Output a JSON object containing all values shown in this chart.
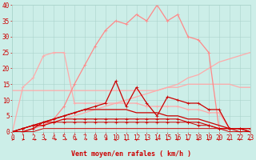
{
  "background_color": "#cceee8",
  "grid_color": "#aad4cc",
  "x_min": 0,
  "x_max": 23,
  "y_min": 0,
  "y_max": 40,
  "xlabel": "Vent moyen/en rafales ( km/h )",
  "xlabel_color": "#cc0000",
  "xlabel_fontsize": 6,
  "tick_color": "#cc0000",
  "tick_fontsize": 5.5,
  "series": [
    {
      "x": [
        0,
        1,
        2,
        3,
        4,
        5,
        6,
        7,
        8,
        9,
        10,
        11,
        12,
        13,
        14,
        15,
        16,
        17,
        18,
        19,
        20,
        21,
        22,
        23
      ],
      "y": [
        0,
        1,
        2,
        2,
        3,
        4,
        5,
        6,
        7,
        8,
        9,
        10,
        11,
        12,
        13,
        14,
        15,
        17,
        18,
        20,
        22,
        23,
        24,
        25
      ],
      "color": "#ffaaaa",
      "linewidth": 0.9,
      "marker": null,
      "alpha": 1.0
    },
    {
      "x": [
        0,
        1,
        2,
        3,
        4,
        5,
        6,
        7,
        8,
        9,
        10,
        11,
        12,
        13,
        14,
        15,
        16,
        17,
        18,
        19,
        20,
        21,
        22,
        23
      ],
      "y": [
        13,
        13,
        13,
        13,
        13,
        13,
        13,
        13,
        13,
        13,
        13,
        13,
        13,
        13,
        13,
        14,
        14,
        15,
        15,
        15,
        15,
        15,
        14,
        14
      ],
      "color": "#ffaaaa",
      "linewidth": 0.9,
      "marker": null,
      "alpha": 1.0
    },
    {
      "x": [
        0,
        1,
        2,
        3,
        4,
        5,
        6,
        7,
        8,
        9,
        10,
        11,
        12,
        13,
        14,
        15,
        16,
        17,
        18,
        19,
        20,
        21,
        22,
        23
      ],
      "y": [
        0,
        14,
        17,
        24,
        25,
        25,
        9,
        9,
        9,
        9,
        9,
        9,
        9,
        8,
        8,
        8,
        8,
        7,
        7,
        6,
        6,
        1,
        1,
        1
      ],
      "color": "#ffaaaa",
      "linewidth": 0.9,
      "marker": "+",
      "markersize": 3.0,
      "alpha": 1.0
    },
    {
      "x": [
        0,
        1,
        2,
        3,
        4,
        5,
        6,
        7,
        8,
        9,
        10,
        11,
        12,
        13,
        14,
        15,
        16,
        17,
        18,
        19,
        20,
        21,
        22,
        23
      ],
      "y": [
        0,
        0,
        1,
        2,
        4,
        8,
        15,
        21,
        27,
        32,
        35,
        34,
        37,
        35,
        40,
        35,
        37,
        30,
        29,
        25,
        1,
        1,
        1,
        1
      ],
      "color": "#ff8888",
      "linewidth": 0.9,
      "marker": "+",
      "markersize": 3.0,
      "alpha": 1.0
    },
    {
      "x": [
        0,
        1,
        2,
        3,
        4,
        5,
        6,
        7,
        8,
        9,
        10,
        11,
        12,
        13,
        14,
        15,
        16,
        17,
        18,
        19,
        20,
        21,
        22,
        23
      ],
      "y": [
        0,
        0,
        1,
        3,
        4,
        5,
        6,
        7,
        8,
        9,
        16,
        8,
        14,
        9,
        5,
        11,
        10,
        9,
        9,
        7,
        7,
        1,
        1,
        1
      ],
      "color": "#cc0000",
      "linewidth": 0.9,
      "marker": "+",
      "markersize": 3.0,
      "alpha": 1.0
    },
    {
      "x": [
        0,
        1,
        2,
        3,
        4,
        5,
        6,
        7,
        8,
        9,
        10,
        11,
        12,
        13,
        14,
        15,
        16,
        17,
        18,
        19,
        20,
        21,
        22,
        23
      ],
      "y": [
        0,
        1,
        2,
        3,
        4,
        5,
        6,
        7,
        7,
        7,
        7,
        7,
        6,
        6,
        6,
        5,
        5,
        4,
        4,
        3,
        2,
        1,
        1,
        0
      ],
      "color": "#cc0000",
      "linewidth": 0.9,
      "marker": null,
      "alpha": 1.0
    },
    {
      "x": [
        0,
        1,
        2,
        3,
        4,
        5,
        6,
        7,
        8,
        9,
        10,
        11,
        12,
        13,
        14,
        15,
        16,
        17,
        18,
        19,
        20,
        21,
        22,
        23
      ],
      "y": [
        0,
        1,
        2,
        3,
        3,
        3,
        3,
        3,
        3,
        3,
        3,
        3,
        3,
        3,
        3,
        3,
        3,
        3,
        2,
        2,
        1,
        1,
        0,
        0
      ],
      "color": "#cc0000",
      "linewidth": 0.7,
      "marker": "+",
      "markersize": 2.5,
      "alpha": 1.0
    },
    {
      "x": [
        0,
        1,
        2,
        3,
        4,
        5,
        6,
        7,
        8,
        9,
        10,
        11,
        12,
        13,
        14,
        15,
        16,
        17,
        18,
        19,
        20,
        21,
        22,
        23
      ],
      "y": [
        0,
        0,
        0,
        1,
        1,
        1,
        1,
        1,
        1,
        1,
        1,
        1,
        1,
        1,
        1,
        1,
        1,
        1,
        1,
        1,
        1,
        0,
        0,
        0
      ],
      "color": "#cc0000",
      "linewidth": 0.7,
      "marker": null,
      "alpha": 1.0
    },
    {
      "x": [
        0,
        1,
        2,
        3,
        4,
        5,
        6,
        7,
        8,
        9,
        10,
        11,
        12,
        13,
        14,
        15,
        16,
        17,
        18,
        19,
        20,
        21,
        22,
        23
      ],
      "y": [
        0,
        1,
        2,
        2,
        3,
        4,
        4,
        4,
        4,
        4,
        4,
        4,
        4,
        4,
        4,
        4,
        4,
        3,
        3,
        2,
        1,
        1,
        1,
        0
      ],
      "color": "#cc0000",
      "linewidth": 0.8,
      "marker": "+",
      "markersize": 2.5,
      "alpha": 1.0
    }
  ],
  "wind_angles": [
    90,
    85,
    80,
    75,
    65,
    60,
    55,
    50,
    45,
    40,
    0,
    355,
    350,
    345,
    340,
    340,
    340,
    340,
    340,
    340,
    340,
    340,
    340,
    340
  ]
}
